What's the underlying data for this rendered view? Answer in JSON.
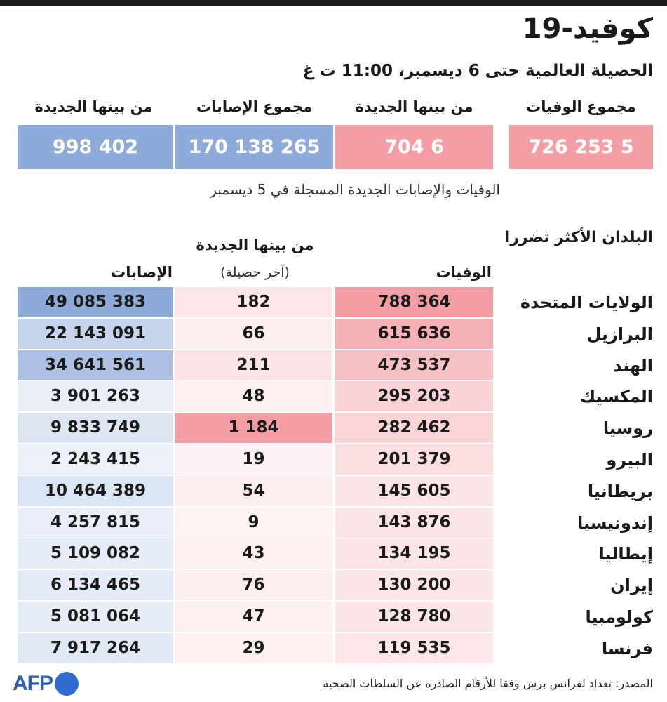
{
  "header": {
    "title": "كوفيد-19",
    "subtitle": "الحصيلة العالمية حتى 6 ديسمبر، 11:00 ت غ"
  },
  "global": {
    "labels": [
      "مجموع الوفيات",
      "من بينها الجديدة",
      "مجموع الإصابات",
      "من بينها الجديدة"
    ],
    "values": [
      "5 253 726",
      "6 704",
      "265 138 170",
      "402 998"
    ],
    "note": "الوفيات والإصابات الجديدة المسجلة في 5 ديسمبر"
  },
  "colors": {
    "deaths": "#f29ea4",
    "cases": "#8eaad9",
    "text": "#1a1a1a",
    "logo": "#2f6bd0"
  },
  "chart_data": {
    "type": "table",
    "title": "البلدان الأكثر تضررا",
    "columns": {
      "deaths": "الوفيات",
      "new": "من بينها الجديدة",
      "new_sub": "(آخر حصيلة)",
      "cases": "الإصابات"
    },
    "rows": [
      {
        "country": "الولايات المتحدة",
        "deaths": "788 364",
        "new": "182",
        "cases": "49 085 383"
      },
      {
        "country": "البرازيل",
        "deaths": "615 636",
        "new": "66",
        "cases": "22 143 091"
      },
      {
        "country": "الهند",
        "deaths": "473 537",
        "new": "211",
        "cases": "34 641 561"
      },
      {
        "country": "المكسيك",
        "deaths": "295 203",
        "new": "48",
        "cases": "3 901 263"
      },
      {
        "country": "روسيا",
        "deaths": "282 462",
        "new": "1 184",
        "cases": "9 833 749"
      },
      {
        "country": "البيرو",
        "deaths": "201 379",
        "new": "19",
        "cases": "2 243 415"
      },
      {
        "country": "بريطانيا",
        "deaths": "145 605",
        "new": "54",
        "cases": "10 464 389"
      },
      {
        "country": "إندونيسيا",
        "deaths": "143 876",
        "new": "9",
        "cases": "4 257 815"
      },
      {
        "country": "إيطاليا",
        "deaths": "134 195",
        "new": "43",
        "cases": "5 109 082"
      },
      {
        "country": "إيران",
        "deaths": "130 200",
        "new": "76",
        "cases": "6 134 465"
      },
      {
        "country": "كولومبيا",
        "deaths": "128 780",
        "new": "47",
        "cases": "5 081 064"
      },
      {
        "country": "فرنسا",
        "deaths": "119 535",
        "new": "29",
        "cases": "7 917 264"
      }
    ]
  },
  "footer": {
    "source": "المصدر: تعداد لفرانس برس وفقا للأرقام الصادرة عن السلطات الصحية",
    "logo_text": "AFP"
  }
}
